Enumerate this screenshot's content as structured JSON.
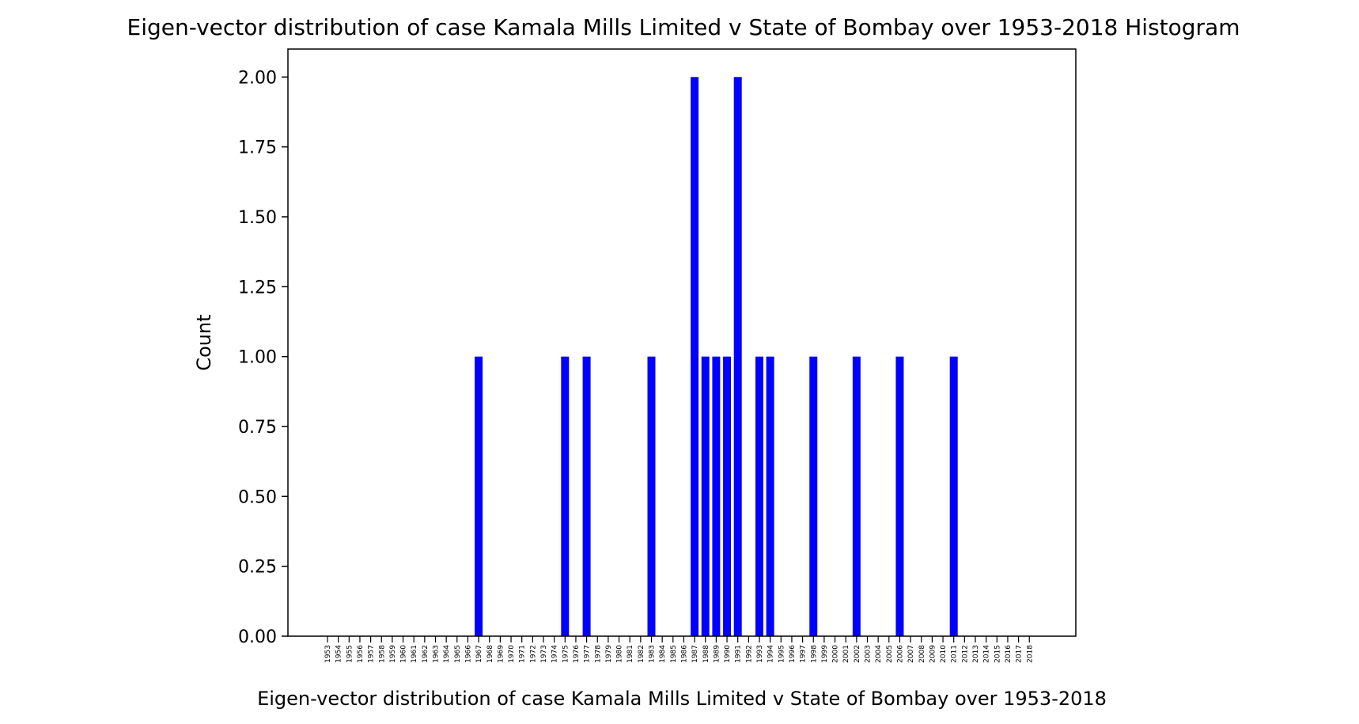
{
  "chart_data": {
    "type": "bar",
    "title": "Eigen-vector distribution of case Kamala Mills Limited v State of Bombay over 1953-2018 Histogram",
    "xlabel": "Eigen-vector distribution of case Kamala Mills Limited v State of Bombay over 1953-2018",
    "ylabel": "Count",
    "ylim": [
      0,
      2.1
    ],
    "yticks": [
      "0.00",
      "0.25",
      "0.50",
      "0.75",
      "1.00",
      "1.25",
      "1.50",
      "1.75",
      "2.00"
    ],
    "ytick_values": [
      0,
      0.25,
      0.5,
      0.75,
      1.0,
      1.25,
      1.5,
      1.75,
      2.0
    ],
    "categories": [
      "1953",
      "1954",
      "1955",
      "1956",
      "1957",
      "1958",
      "1959",
      "1960",
      "1961",
      "1962",
      "1963",
      "1964",
      "1965",
      "1966",
      "1967",
      "1968",
      "1969",
      "1970",
      "1971",
      "1972",
      "1973",
      "1974",
      "1975",
      "1976",
      "1977",
      "1978",
      "1979",
      "1980",
      "1981",
      "1982",
      "1983",
      "1984",
      "1985",
      "1986",
      "1987",
      "1988",
      "1989",
      "1990",
      "1991",
      "1992",
      "1993",
      "1994",
      "1995",
      "1996",
      "1997",
      "1998",
      "1999",
      "2000",
      "2001",
      "2002",
      "2003",
      "2004",
      "2005",
      "2006",
      "2007",
      "2008",
      "2009",
      "2010",
      "2011",
      "2012",
      "2013",
      "2014",
      "2015",
      "2016",
      "2017",
      "2018"
    ],
    "bars": [
      {
        "x": 1967,
        "value": 1
      },
      {
        "x": 1975,
        "value": 1
      },
      {
        "x": 1977,
        "value": 1
      },
      {
        "x": 1983,
        "value": 1
      },
      {
        "x": 1987,
        "value": 2
      },
      {
        "x": 1988,
        "value": 1
      },
      {
        "x": 1989,
        "value": 1
      },
      {
        "x": 1990,
        "value": 1
      },
      {
        "x": 1991,
        "value": 2
      },
      {
        "x": 1993,
        "value": 1
      },
      {
        "x": 1994,
        "value": 1
      },
      {
        "x": 1998,
        "value": 1
      },
      {
        "x": 2002,
        "value": 1
      },
      {
        "x": 2006,
        "value": 1
      },
      {
        "x": 2011,
        "value": 1
      }
    ],
    "bar_color": "#0000ff",
    "grid": false,
    "legend": false
  }
}
